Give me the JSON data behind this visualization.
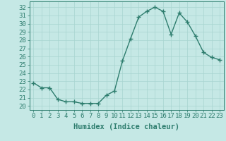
{
  "x": [
    0,
    1,
    2,
    3,
    4,
    5,
    6,
    7,
    8,
    9,
    10,
    11,
    12,
    13,
    14,
    15,
    16,
    17,
    18,
    19,
    20,
    21,
    22,
    23
  ],
  "y": [
    22.8,
    22.2,
    22.2,
    20.8,
    20.5,
    20.5,
    20.3,
    20.3,
    20.3,
    21.3,
    21.8,
    25.5,
    28.2,
    30.8,
    31.5,
    32.0,
    31.5,
    28.7,
    31.3,
    30.2,
    28.5,
    26.5,
    25.9,
    25.6
  ],
  "line_color": "#2e7d6e",
  "marker": "+",
  "marker_size": 4,
  "bg_color": "#c5e8e5",
  "grid_color": "#a8d5d0",
  "xlabel": "Humidex (Indice chaleur)",
  "xlim": [
    -0.5,
    23.5
  ],
  "ylim": [
    19.5,
    32.7
  ],
  "yticks": [
    20,
    21,
    22,
    23,
    24,
    25,
    26,
    27,
    28,
    29,
    30,
    31,
    32
  ],
  "xticks": [
    0,
    1,
    2,
    3,
    4,
    5,
    6,
    7,
    8,
    9,
    10,
    11,
    12,
    13,
    14,
    15,
    16,
    17,
    18,
    19,
    20,
    21,
    22,
    23
  ],
  "xlabel_fontsize": 7.5,
  "tick_fontsize": 6.5,
  "line_width": 1.0
}
